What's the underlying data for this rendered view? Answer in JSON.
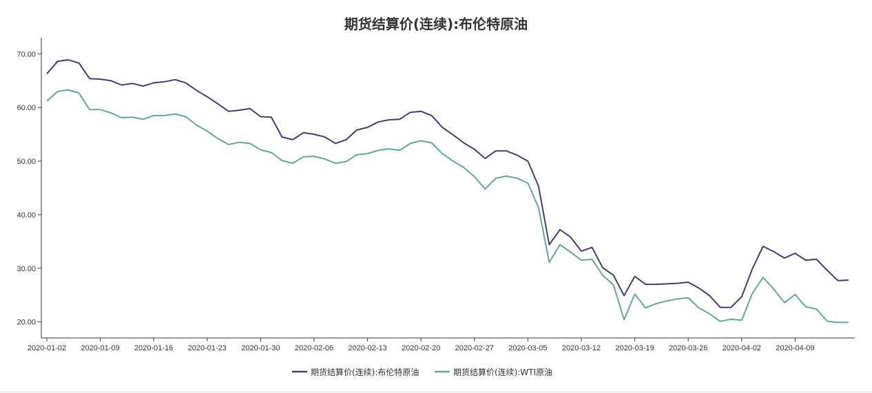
{
  "chart_data": {
    "type": "line",
    "title": "期货结算价(连续):布伦特原油",
    "xlabel": "",
    "ylabel": "",
    "ylim": [
      17,
      73
    ],
    "x_tick_labels": [
      "2020-01-02",
      "2020-01-09",
      "2020-01-16",
      "2020-01-23",
      "2020-01-30",
      "2020-02-06",
      "2020-02-13",
      "2020-02-20",
      "2020-02-27",
      "2020-03-05",
      "2020-03-12",
      "2020-03-19",
      "2020-03-26",
      "2020-04-02",
      "2020-04-09"
    ],
    "y_tick_labels": [
      "20.00",
      "30.00",
      "40.00",
      "50.00",
      "60.00",
      "70.00"
    ],
    "y_ticks": [
      20,
      30,
      40,
      50,
      60,
      70
    ],
    "grid": false,
    "legend_position": "bottom-center",
    "x": [
      "2020-01-02",
      "2020-01-03",
      "2020-01-06",
      "2020-01-07",
      "2020-01-08",
      "2020-01-09",
      "2020-01-10",
      "2020-01-13",
      "2020-01-14",
      "2020-01-15",
      "2020-01-16",
      "2020-01-17",
      "2020-01-20",
      "2020-01-21",
      "2020-01-22",
      "2020-01-23",
      "2020-01-24",
      "2020-01-27",
      "2020-01-28",
      "2020-01-29",
      "2020-01-30",
      "2020-01-31",
      "2020-02-03",
      "2020-02-04",
      "2020-02-05",
      "2020-02-06",
      "2020-02-07",
      "2020-02-10",
      "2020-02-11",
      "2020-02-12",
      "2020-02-13",
      "2020-02-14",
      "2020-02-17",
      "2020-02-18",
      "2020-02-19",
      "2020-02-20",
      "2020-02-21",
      "2020-02-24",
      "2020-02-25",
      "2020-02-26",
      "2020-02-27",
      "2020-02-28",
      "2020-03-02",
      "2020-03-03",
      "2020-03-04",
      "2020-03-05",
      "2020-03-06",
      "2020-03-09",
      "2020-03-10",
      "2020-03-11",
      "2020-03-12",
      "2020-03-13",
      "2020-03-16",
      "2020-03-17",
      "2020-03-18",
      "2020-03-19",
      "2020-03-20",
      "2020-03-23",
      "2020-03-24",
      "2020-03-25",
      "2020-03-26",
      "2020-03-27",
      "2020-03-30",
      "2020-03-31",
      "2020-04-01",
      "2020-04-02",
      "2020-04-03",
      "2020-04-06",
      "2020-04-07",
      "2020-04-08",
      "2020-04-09",
      "2020-04-13",
      "2020-04-14",
      "2020-04-15",
      "2020-04-16",
      "2020-04-17"
    ],
    "series": [
      {
        "name": "期货结算价(连续):布伦特原油",
        "color": "#3b3f75",
        "values": [
          66.3,
          68.6,
          68.9,
          68.3,
          65.4,
          65.3,
          65.0,
          64.2,
          64.5,
          64.0,
          64.6,
          64.8,
          65.2,
          64.6,
          63.2,
          62.0,
          60.7,
          59.3,
          59.5,
          59.8,
          58.3,
          58.2,
          54.5,
          54.0,
          55.3,
          55.0,
          54.5,
          53.3,
          54.0,
          55.8,
          56.3,
          57.3,
          57.7,
          57.8,
          59.1,
          59.3,
          58.5,
          56.3,
          54.9,
          53.4,
          52.2,
          50.5,
          51.9,
          51.9,
          51.1,
          50.0,
          45.3,
          34.4,
          37.2,
          35.8,
          33.2,
          33.9,
          30.1,
          28.7,
          24.9,
          28.5,
          27.0,
          27.0,
          27.1,
          27.2,
          27.4,
          26.3,
          24.9,
          22.7,
          22.7,
          24.7,
          29.9,
          34.1,
          33.1,
          31.9,
          32.8,
          31.5,
          31.7,
          29.6,
          27.7,
          27.8
        ]
      },
      {
        "name": "期货结算价(连续):WTI原油",
        "color": "#5ea892",
        "values": [
          61.2,
          63.0,
          63.3,
          62.7,
          59.6,
          59.6,
          59.0,
          58.1,
          58.2,
          57.8,
          58.5,
          58.5,
          58.8,
          58.3,
          56.7,
          55.6,
          54.2,
          53.1,
          53.5,
          53.3,
          52.1,
          51.6,
          50.1,
          49.6,
          50.8,
          50.9,
          50.4,
          49.6,
          49.9,
          51.2,
          51.4,
          52.0,
          52.3,
          52.0,
          53.3,
          53.8,
          53.4,
          51.4,
          50.0,
          48.8,
          47.1,
          44.8,
          46.8,
          47.2,
          46.8,
          45.9,
          41.3,
          31.1,
          34.4,
          33.0,
          31.5,
          31.7,
          28.7,
          26.9,
          20.4,
          25.2,
          22.6,
          23.4,
          23.9,
          24.3,
          24.5,
          22.6,
          21.5,
          20.1,
          20.5,
          20.3,
          25.3,
          28.3,
          26.1,
          23.6,
          25.1,
          22.8,
          22.4,
          20.1,
          19.9,
          19.9
        ]
      }
    ]
  }
}
